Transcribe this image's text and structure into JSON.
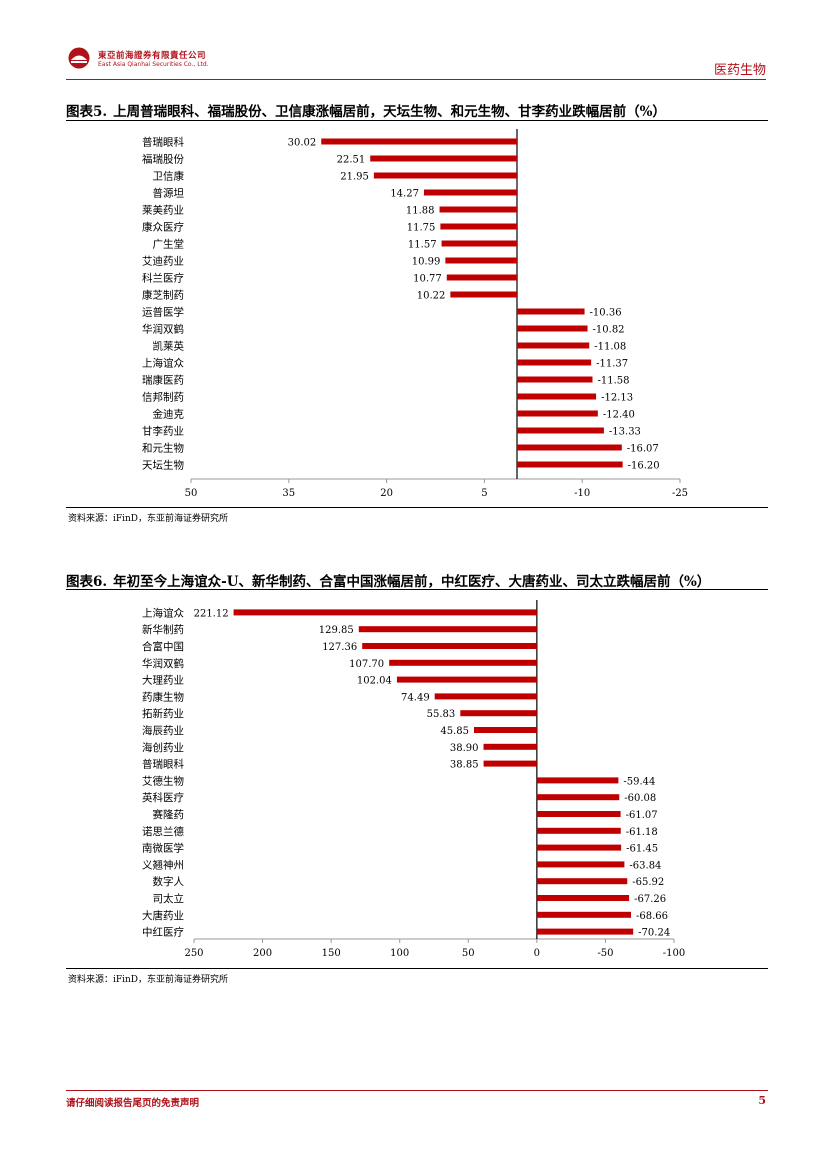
{
  "header": {
    "company_cn": "東亞前海證券有限責任公司",
    "company_en": "East Asia Qianhai Securities Co., Ltd.",
    "section": "医药生物"
  },
  "figure5": {
    "number": "图表5.",
    "title": "上周普瑞眼科、福瑞股份、卫信康涨幅居前，天坛生物、和元生物、甘李药业跌幅居前（%）",
    "source": "资料来源：iFinD，东亚前海证券研究所"
  },
  "figure6": {
    "number": "图表6.",
    "title": "年初至今上海谊众-U、新华制药、合富中国涨幅居前，中红医疗、大唐药业、司太立跌幅居前（%）",
    "source": "资料来源：iFinD，东亚前海证券研究所"
  },
  "footer": {
    "disclaimer": "请仔细阅读报告尾页的免责声明",
    "page": "5"
  },
  "chart_data": [
    {
      "type": "bar",
      "orientation": "horizontal",
      "x_reversed": true,
      "categories": [
        "普瑞眼科",
        "福瑞股份",
        "卫信康",
        "普源坦",
        "莱美药业",
        "康众医疗",
        "广生堂",
        "艾迪药业",
        "科兰医疗",
        "康芝制药",
        "运普医学",
        "华润双鹤",
        "凯莱英",
        "上海谊众",
        "瑞康医药",
        "信邦制药",
        "金迪克",
        "甘李药业",
        "和元生物",
        "天坛生物"
      ],
      "values": [
        30.02,
        22.51,
        21.95,
        14.27,
        11.88,
        11.75,
        11.57,
        10.99,
        10.77,
        10.22,
        -10.36,
        -10.82,
        -11.08,
        -11.37,
        -11.58,
        -12.13,
        -12.4,
        -13.33,
        -16.07,
        -16.2
      ],
      "value_labels": [
        "30.02",
        "22.51",
        "21.95",
        "14.27",
        "11.88",
        "11.75",
        "11.57",
        "10.99",
        "10.77",
        "10.22",
        "-10.36",
        "-10.82",
        "-11.08",
        "-11.37",
        "-11.58",
        "-12.13",
        "-12.40",
        "-13.33",
        "-16.07",
        "-16.20"
      ],
      "xlim": [
        50,
        -25
      ],
      "ticks": [
        50,
        35,
        20,
        5,
        -10,
        -25
      ],
      "tick_labels": [
        "50",
        "35",
        "20",
        "5",
        "-10",
        "-25"
      ],
      "bar_color": "#c00000"
    },
    {
      "type": "bar",
      "orientation": "horizontal",
      "x_reversed": true,
      "categories": [
        "上海谊众",
        "新华制药",
        "合富中国",
        "华润双鹤",
        "大理药业",
        "药康生物",
        "拓新药业",
        "海辰药业",
        "海创药业",
        "普瑞眼科",
        "艾德生物",
        "英科医疗",
        "赛隆药",
        "诺思兰德",
        "南微医学",
        "义翘神州",
        "数字人",
        "司太立",
        "大唐药业",
        "中红医疗"
      ],
      "values": [
        221.12,
        129.85,
        127.36,
        107.7,
        102.04,
        74.49,
        55.83,
        45.85,
        38.9,
        38.85,
        -59.44,
        -60.08,
        -61.07,
        -61.18,
        -61.45,
        -63.84,
        -65.92,
        -67.26,
        -68.66,
        -70.24
      ],
      "value_labels": [
        "221.12",
        "129.85",
        "127.36",
        "107.70",
        "102.04",
        "74.49",
        "55.83",
        "45.85",
        "38.90",
        "38.85",
        "-59.44",
        "-60.08",
        "-61.07",
        "-61.18",
        "-61.45",
        "-63.84",
        "-65.92",
        "-67.26",
        "-68.66",
        "-70.24"
      ],
      "xlim": [
        250,
        -100
      ],
      "ticks": [
        250,
        200,
        150,
        100,
        50,
        0,
        -50,
        -100
      ],
      "tick_labels": [
        "250",
        "200",
        "150",
        "100",
        "50",
        "0",
        "-50",
        "-100"
      ],
      "bar_color": "#c00000"
    }
  ]
}
